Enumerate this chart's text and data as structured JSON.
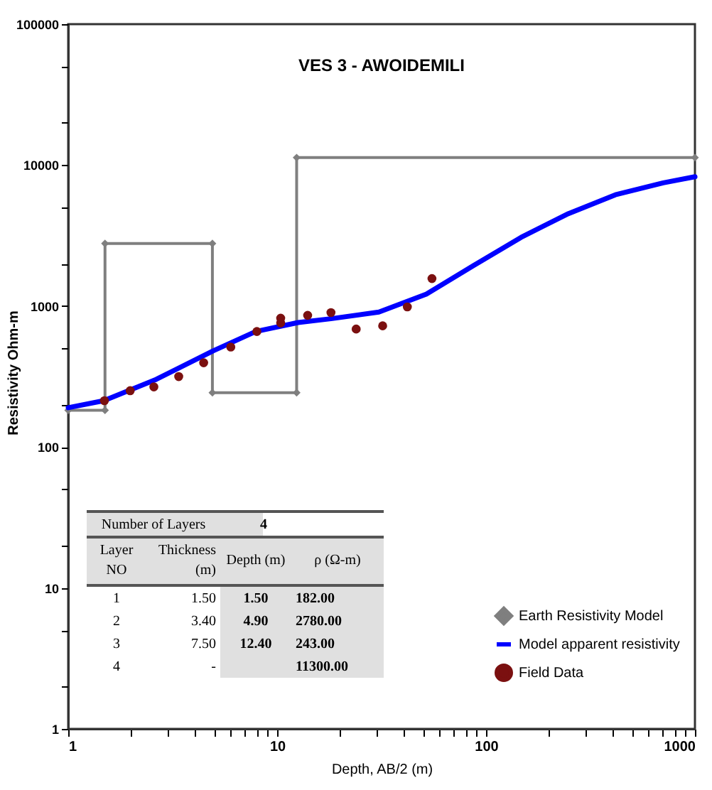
{
  "chart_data": {
    "type": "line",
    "title": "VES 3 - AWOIDEMILI",
    "xlabel": "Depth, AB/2 (m)",
    "ylabel": "Resistivity Ohm-m",
    "log": "xy",
    "xlim": [
      1,
      1000
    ],
    "ylim": [
      1,
      100000
    ],
    "xticks": [
      1,
      {
        "value": 2,
        "label": null
      },
      {
        "value": 3,
        "label": null
      },
      {
        "value": 4,
        "label": null
      },
      {
        "value": 5,
        "label": null
      },
      {
        "value": 6,
        "label": null
      },
      {
        "value": 7,
        "label": null
      },
      {
        "value": 8,
        "label": null
      },
      {
        "value": 9,
        "label": null
      },
      10,
      {
        "value": 20,
        "label": null
      },
      {
        "value": 30,
        "label": null
      },
      {
        "value": 40,
        "label": null
      },
      {
        "value": 50,
        "label": null
      },
      {
        "value": 60,
        "label": null
      },
      {
        "value": 70,
        "label": null
      },
      {
        "value": 80,
        "label": null
      },
      {
        "value": 90,
        "label": null
      },
      100,
      {
        "value": 200,
        "label": null
      },
      {
        "value": 300,
        "label": null
      },
      {
        "value": 400,
        "label": null
      },
      {
        "value": 500,
        "label": null
      },
      {
        "value": 600,
        "label": null
      },
      {
        "value": 700,
        "label": null
      },
      {
        "value": 800,
        "label": null
      },
      {
        "value": 900,
        "label": null
      },
      1000
    ],
    "yticks": [
      1,
      {
        "value": 2,
        "label": null
      },
      {
        "value": 5,
        "label": null
      },
      10,
      {
        "value": 20,
        "label": null
      },
      {
        "value": 50,
        "label": null
      },
      100,
      {
        "value": 200,
        "label": null
      },
      {
        "value": 500,
        "label": null
      },
      1000,
      {
        "value": 2000,
        "label": null
      },
      {
        "value": 5000,
        "label": null
      },
      10000,
      {
        "value": 20000,
        "label": null
      },
      {
        "value": 50000,
        "label": null
      },
      100000
    ],
    "grid": false,
    "legend": "bottom right",
    "series": [
      {
        "name": "Earth Resistivity Model",
        "color": "#7f7f7f",
        "marker": "diamond",
        "x": [
          1,
          1.5,
          1.5,
          4.9,
          4.9,
          12.4,
          12.4,
          1000
        ],
        "values": [
          182,
          182,
          2780,
          2780,
          243,
          243,
          11300,
          11300
        ]
      },
      {
        "name": "Model apparent resistivity",
        "color": "#0000ff",
        "marker": "none",
        "x": [
          1,
          1.48,
          2.64,
          4.94,
          7.9,
          12.6,
          18.1,
          30.7,
          51.8,
          86.9,
          147,
          248,
          416,
          705,
          1000
        ],
        "values": [
          190,
          213,
          302,
          481,
          660,
          764,
          813,
          907,
          1215,
          1932,
          3070,
          4530,
          6160,
          7480,
          8270
        ]
      },
      {
        "name": "Field Data",
        "type": "scatter",
        "color": "#7b1010",
        "marker": "circle",
        "x": [
          1.49,
          1.98,
          2.57,
          3.38,
          4.45,
          6.0,
          8.0,
          10.4,
          10.4,
          14.0,
          18.1,
          23.9,
          32.0,
          42.0,
          55.1
        ],
        "values": [
          213,
          251,
          267,
          316,
          396,
          512,
          660,
          820,
          759,
          859,
          899,
          687,
          724,
          986,
          1567
        ]
      }
    ],
    "annotations": [
      "Number of Layers",
      "4",
      "Layer NO",
      "Thickness (m)",
      "Depth (m)",
      "ρ (Ω-m)",
      "1",
      "1.50",
      "1.50",
      "182.00",
      "2",
      "3.40",
      "4.90",
      "2780.00",
      "3",
      "7.50",
      "12.40",
      "243.00",
      "4",
      "-",
      "11300.00"
    ]
  }
}
